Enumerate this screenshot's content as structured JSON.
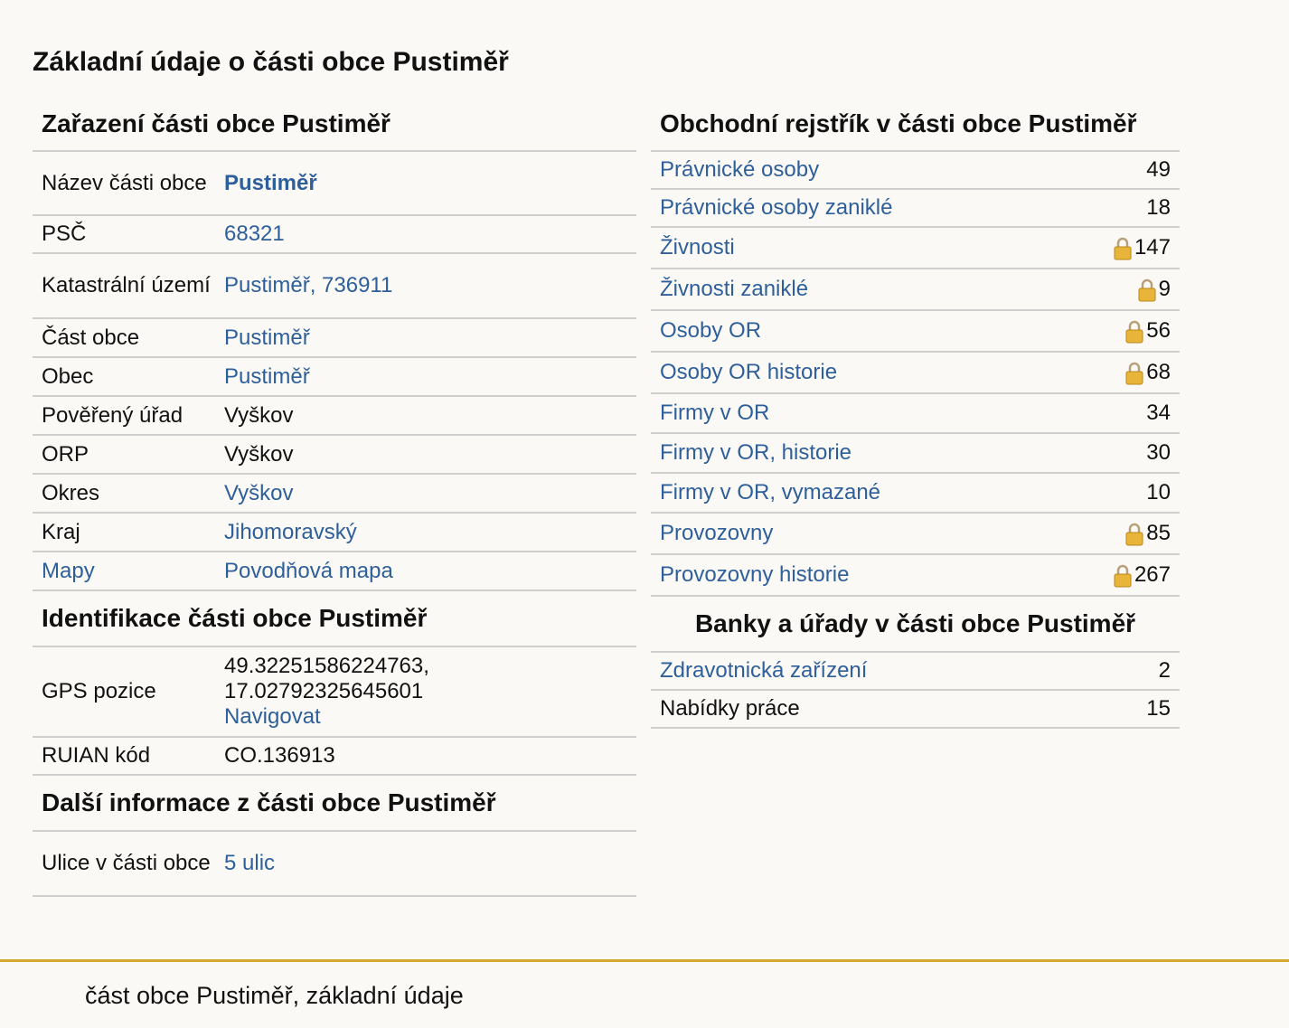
{
  "page_title": "Základní údaje o části obce Pustiměř",
  "classification": {
    "title": "Zařazení části obce Pustiměř",
    "rows": [
      {
        "label": "Název části obce",
        "value": "Pustiměř"
      },
      {
        "label": "PSČ",
        "value": "68321"
      },
      {
        "label": "Katastrální území",
        "value": "Pustiměř, 736911"
      },
      {
        "label": "Část obce",
        "value": "Pustiměř"
      },
      {
        "label": "Obec",
        "value": "Pustiměř"
      },
      {
        "label": "Pověřený úřad",
        "value": "Vyškov"
      },
      {
        "label": "ORP",
        "value": "Vyškov"
      },
      {
        "label": "Okres",
        "value": "Vyškov"
      },
      {
        "label": "Kraj",
        "value": "Jihomoravský"
      },
      {
        "label": "Mapy",
        "value": "Povodňová mapa"
      }
    ]
  },
  "identification": {
    "title": "Identifikace části obce Pustiměř",
    "gps_label": "GPS pozice",
    "gps_lat": "49.32251586224763,",
    "gps_lon": "17.02792325645601",
    "navigate_label": "Navigovat",
    "ruian_label": "RUIAN kód",
    "ruian_value": "CO.136913"
  },
  "more_info": {
    "title": "Další informace z části obce Pustiměř",
    "streets_label": "Ulice v části obce",
    "streets_value": "5 ulic"
  },
  "business_register": {
    "title": "Obchodní rejstřík v části obce Pustiměř",
    "rows": [
      {
        "label": "Právnické osoby",
        "count": "49",
        "locked": false
      },
      {
        "label": "Právnické osoby zaniklé",
        "count": "18",
        "locked": false
      },
      {
        "label": "Živnosti",
        "count": "147",
        "locked": true
      },
      {
        "label": "Živnosti zaniklé",
        "count": "9",
        "locked": true
      },
      {
        "label": "Osoby OR",
        "count": "56",
        "locked": true
      },
      {
        "label": "Osoby OR historie",
        "count": "68",
        "locked": true
      },
      {
        "label": "Firmy v OR",
        "count": "34",
        "locked": false
      },
      {
        "label": "Firmy v OR, historie",
        "count": "30",
        "locked": false
      },
      {
        "label": "Firmy v OR, vymazané",
        "count": "10",
        "locked": false
      },
      {
        "label": "Provozovny",
        "count": "85",
        "locked": true
      },
      {
        "label": "Provozovny historie",
        "count": "267",
        "locked": true
      }
    ]
  },
  "banks_offices": {
    "title": "Banky a úřady v části obce Pustiměř",
    "rows": [
      {
        "label": "Zdravotnická zařízení",
        "count": "2"
      },
      {
        "label": "Nabídky práce",
        "count": "15"
      }
    ]
  },
  "footer_text": "část obce Pustiměř, základní údaje",
  "icons": {
    "lock": "lock-icon"
  },
  "colors": {
    "link": "#2e5f9a",
    "footer_border": "#d4a92c",
    "background": "#faf9f5",
    "divider": "#cfcfcf"
  }
}
